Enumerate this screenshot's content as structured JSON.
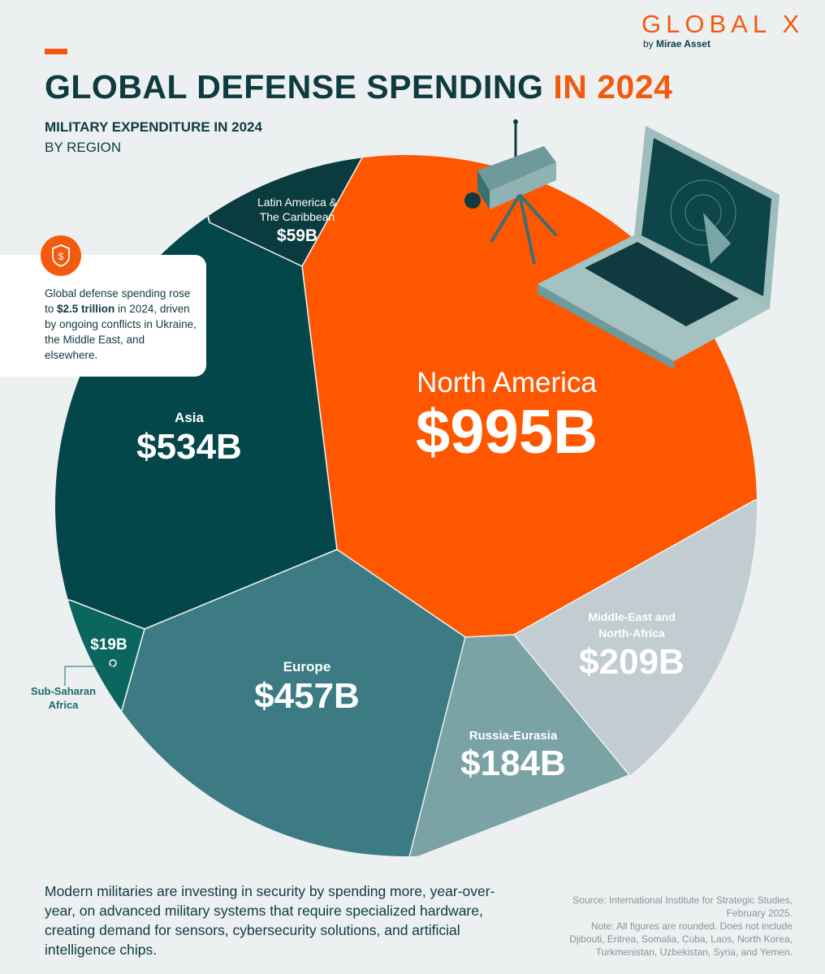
{
  "logo": {
    "brand": "GLOBAL X",
    "by": "by ",
    "by_name": "Mirae Asset"
  },
  "header": {
    "title_main": "GLOBAL DEFENSE SPENDING ",
    "title_highlight": "IN 2024",
    "subtitle": "MILITARY EXPENDITURE IN 2024",
    "subtitle2": "BY REGION"
  },
  "callout": {
    "icon": "dollar-shield-icon",
    "text_before": "Global defense spending rose to ",
    "text_bold": "$2.5 trillion",
    "text_after": " in 2024, driven by ongoing conflicts in Ukraine, the Middle East, and elsewhere."
  },
  "chart_data": {
    "type": "pie",
    "title": "Military Expenditure in 2024 by Region",
    "unit": "USD billions",
    "categories": [
      "North America",
      "Asia",
      "Europe",
      "Middle-East and North-Africa",
      "Russia-Eurasia",
      "Latin America & The Caribbean",
      "Sub-Saharan Africa"
    ],
    "values": [
      995,
      534,
      457,
      209,
      184,
      59,
      19
    ],
    "labels": [
      "$995B",
      "$534B",
      "$457B",
      "$209B",
      "$184B",
      "$59B",
      "$19B"
    ],
    "colors": [
      "#fe5700",
      "#04474a",
      "#3c7b83",
      "#c1cdd0",
      "#7ba2a5",
      "#0a3b3e",
      "#0b6660"
    ]
  },
  "footer": {
    "text": "Modern militaries are investing in security by spending more, year-over-year, on advanced military systems that require specialized hardware, creating demand for sensors, cybersecurity solutions, and artificial intelligence chips.",
    "source": "Source: International Institute for Strategic Studies, February 2025.",
    "note": "Note: All figures are rounded. Does not include Djibouti, Eritrea, Somalia, Cuba, Laos, North Korea, Turkmenistan, Uzbekistan, Syria, and Yemen."
  }
}
